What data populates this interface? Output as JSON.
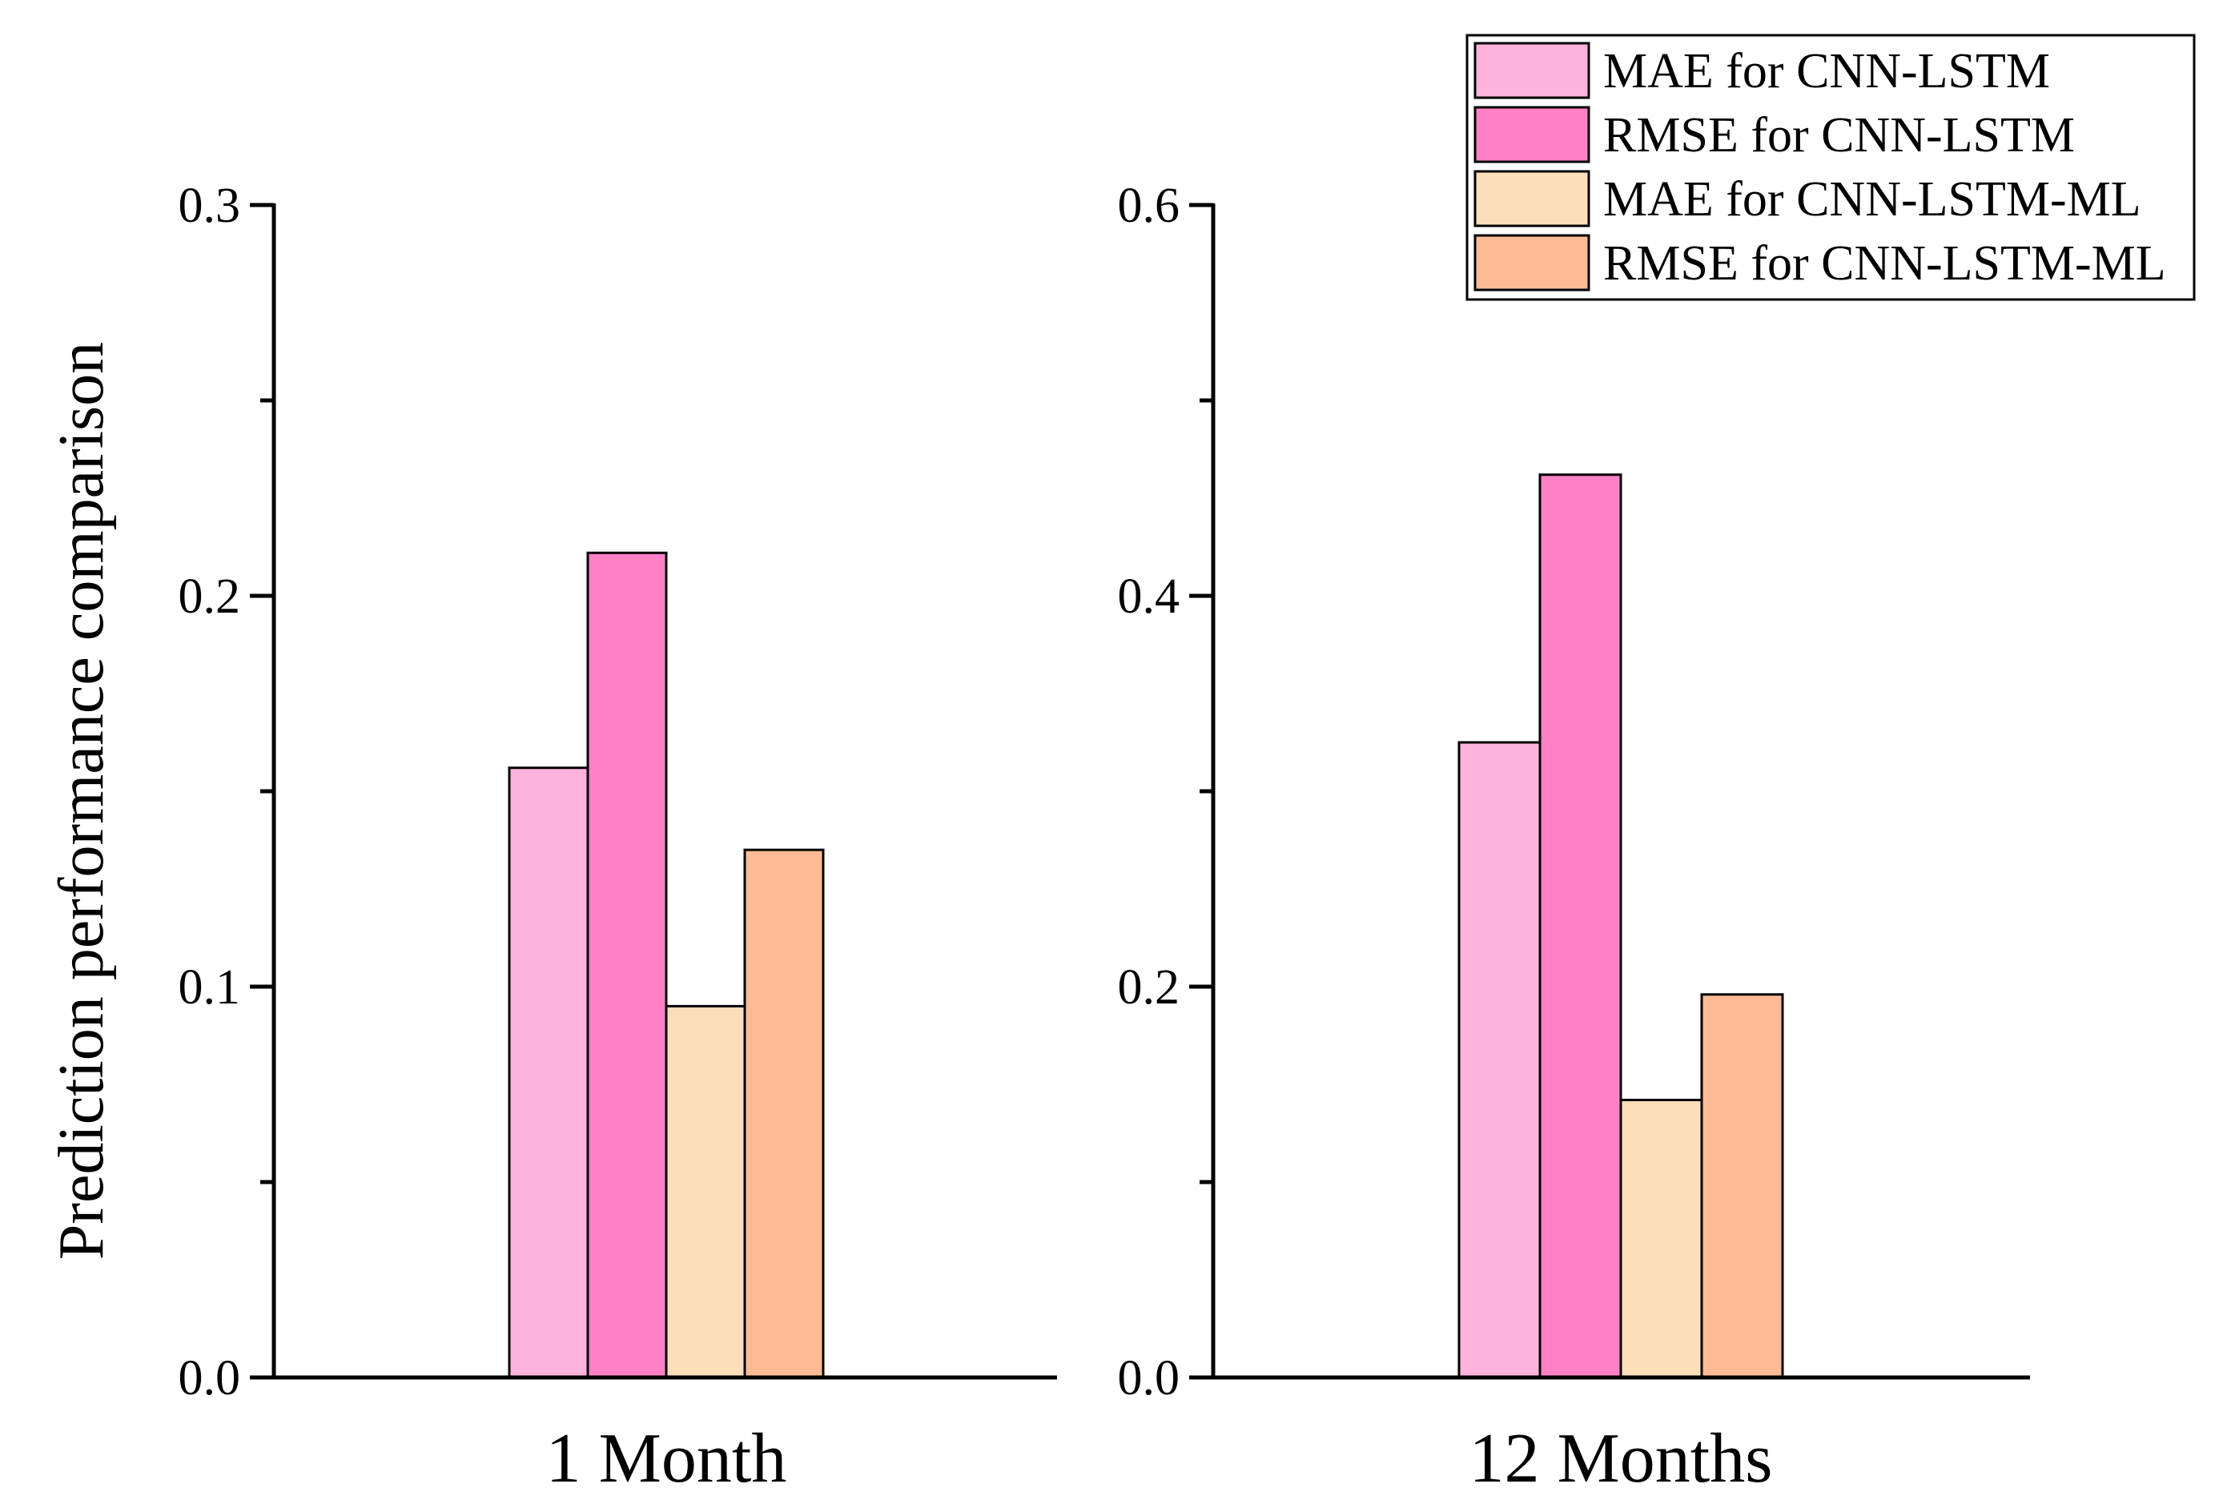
{
  "chart_data": {
    "type": "bar",
    "ylabel": "Prediction performance comparison",
    "legend_position": "top-right",
    "series": [
      {
        "name": "MAE for CNN-LSTM",
        "color": "#FFB3DC"
      },
      {
        "name": "RMSE for CNN-LSTM",
        "color": "#FF80C6"
      },
      {
        "name": "MAE for CNN-LSTM-ML",
        "color": "#FDDEBB"
      },
      {
        "name": "RMSE for CNN-LSTM-ML",
        "color": "#FCBB94"
      }
    ],
    "panels": [
      {
        "category": "1 Month",
        "ylim": [
          0,
          0.3
        ],
        "yticks": [
          "0.0",
          "0.1",
          "0.2",
          "0.3"
        ],
        "yticks_values": [
          0,
          0.1,
          0.2,
          0.3
        ],
        "minor_step": 0.05,
        "values": [
          0.156,
          0.211,
          0.095,
          0.135
        ]
      },
      {
        "category": "12 Months",
        "ylim": [
          0,
          0.6
        ],
        "yticks": [
          "0.0",
          "0.2",
          "0.4",
          "0.6"
        ],
        "yticks_values": [
          0,
          0.2,
          0.4,
          0.6
        ],
        "minor_step": 0.1,
        "values": [
          0.325,
          0.462,
          0.142,
          0.196
        ]
      }
    ]
  }
}
